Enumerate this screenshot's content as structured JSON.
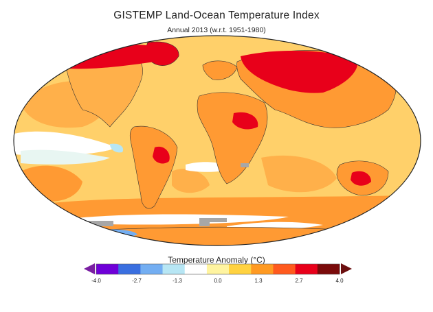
{
  "title": "GISTEMP Land-Ocean Temperature Index",
  "subtitle": "Annual 2013 (w.r.t. 1951-1980)",
  "legend": {
    "title": "Temperature Anomaly (°C)",
    "ticks": [
      "-4.0",
      "-2.7",
      "-1.3",
      "0.0",
      "1.3",
      "2.7",
      "4.0"
    ],
    "colors": [
      "#6f00d8",
      "#3a6fe0",
      "#73aef2",
      "#b7e6f4",
      "#ffffff",
      "#fff4a0",
      "#ffd240",
      "#ff9a22",
      "#ff5a1e",
      "#e8001a",
      "#7a0a0a"
    ],
    "under_color": "#7a1fa2",
    "over_color": "#6b0f10",
    "no_data_color": "#a7a7a7"
  },
  "map": {
    "projection": "robinson",
    "ocean_base_color": "#ffd06a",
    "land_base_color": "#ff9a33"
  }
}
